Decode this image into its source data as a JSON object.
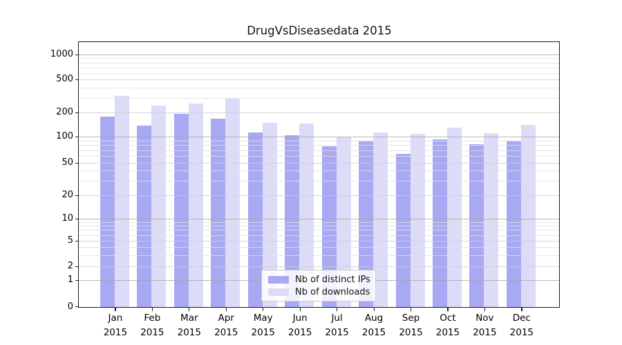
{
  "chart_data": {
    "type": "bar",
    "title": "DrugVsDiseasedata 2015",
    "categories": [
      "Jan",
      "Feb",
      "Mar",
      "Apr",
      "May",
      "Jun",
      "Jul",
      "Aug",
      "Sep",
      "Oct",
      "Nov",
      "Dec"
    ],
    "category_year_label": "2015",
    "series": [
      {
        "name": "Nb of distinct IPs",
        "color": "#a9a9f3",
        "values": [
          178,
          136,
          192,
          166,
          113,
          104,
          78,
          89,
          63,
          93,
          82,
          90
        ]
      },
      {
        "name": "Nb of downloads",
        "color": "#dcdcf9",
        "values": [
          318,
          240,
          258,
          292,
          149,
          146,
          98,
          113,
          108,
          129,
          111,
          140
        ]
      }
    ],
    "xlabel": "",
    "ylabel": "",
    "yscale": "symlog",
    "yticks": [
      0,
      1,
      2,
      5,
      10,
      20,
      50,
      100,
      200,
      500,
      1000
    ],
    "ytick_labels": [
      "0",
      "1",
      "2",
      "5",
      "10",
      "20",
      "50",
      "100",
      "200",
      "500",
      "1000"
    ],
    "ylim": [
      0,
      1400
    ],
    "grid": "both",
    "legend": {
      "location": "lower center",
      "items": [
        "Nb of distinct IPs",
        "Nb of downloads"
      ]
    }
  }
}
